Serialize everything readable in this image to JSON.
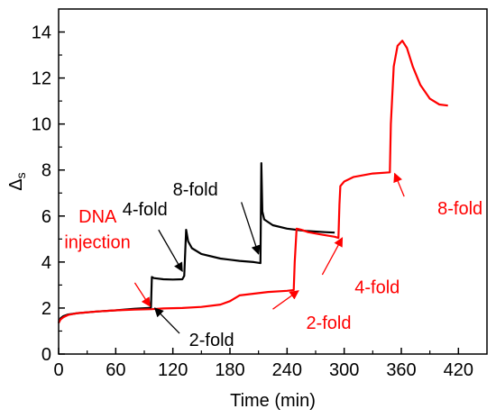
{
  "chart_data": {
    "type": "line",
    "xlabel": "Time (min)",
    "ylabel": "Δ",
    "ylabel_sub": "s",
    "xlim": [
      0,
      450
    ],
    "ylim": [
      0,
      15
    ],
    "xticks": [
      0,
      60,
      120,
      180,
      240,
      300,
      360,
      420
    ],
    "yticks": [
      0,
      2,
      4,
      6,
      8,
      10,
      12,
      14
    ],
    "grid": false,
    "legend": "none",
    "series": [
      {
        "color": "#000000",
        "points": [
          [
            0,
            1.35
          ],
          [
            2,
            1.55
          ],
          [
            5,
            1.65
          ],
          [
            10,
            1.72
          ],
          [
            20,
            1.78
          ],
          [
            40,
            1.85
          ],
          [
            60,
            1.9
          ],
          [
            80,
            1.97
          ],
          [
            95,
            2.0
          ],
          [
            97,
            2.02
          ],
          [
            98,
            3.35
          ],
          [
            100,
            3.3
          ],
          [
            110,
            3.25
          ],
          [
            120,
            3.24
          ],
          [
            130,
            3.25
          ],
          [
            132,
            3.4
          ],
          [
            134,
            5.4
          ],
          [
            136,
            4.9
          ],
          [
            140,
            4.6
          ],
          [
            150,
            4.35
          ],
          [
            170,
            4.15
          ],
          [
            190,
            4.05
          ],
          [
            205,
            4.0
          ],
          [
            212,
            3.95
          ],
          [
            213,
            8.3
          ],
          [
            214,
            6.2
          ],
          [
            216,
            5.85
          ],
          [
            225,
            5.6
          ],
          [
            240,
            5.45
          ],
          [
            260,
            5.35
          ],
          [
            280,
            5.3
          ],
          [
            290,
            5.28
          ]
        ]
      },
      {
        "color": "#ff0000",
        "points": [
          [
            0,
            1.35
          ],
          [
            2,
            1.5
          ],
          [
            5,
            1.6
          ],
          [
            10,
            1.7
          ],
          [
            20,
            1.78
          ],
          [
            40,
            1.85
          ],
          [
            60,
            1.9
          ],
          [
            80,
            1.93
          ],
          [
            98,
            1.95
          ],
          [
            110,
            1.98
          ],
          [
            130,
            2.0
          ],
          [
            150,
            2.05
          ],
          [
            170,
            2.15
          ],
          [
            180,
            2.3
          ],
          [
            190,
            2.55
          ],
          [
            200,
            2.6
          ],
          [
            220,
            2.7
          ],
          [
            240,
            2.75
          ],
          [
            247,
            2.78
          ],
          [
            248,
            4.0
          ],
          [
            250,
            5.45
          ],
          [
            255,
            5.4
          ],
          [
            262,
            5.3
          ],
          [
            275,
            5.2
          ],
          [
            290,
            5.1
          ],
          [
            294,
            5.05
          ],
          [
            295,
            6.5
          ],
          [
            296,
            7.3
          ],
          [
            300,
            7.5
          ],
          [
            310,
            7.7
          ],
          [
            330,
            7.85
          ],
          [
            348,
            7.9
          ],
          [
            349,
            10.0
          ],
          [
            352,
            12.5
          ],
          [
            356,
            13.4
          ],
          [
            361,
            13.62
          ],
          [
            366,
            13.3
          ],
          [
            372,
            12.5
          ],
          [
            380,
            11.7
          ],
          [
            390,
            11.1
          ],
          [
            400,
            10.85
          ],
          [
            409,
            10.8
          ]
        ]
      }
    ],
    "annotations": [
      {
        "text": "DNA",
        "color": "#ff0000",
        "at": [
          21,
          5.72
        ]
      },
      {
        "text": "injection",
        "color": "#ff0000",
        "at": [
          6,
          4.6
        ]
      },
      {
        "text": "4-fold",
        "color": "#000000",
        "at": [
          67,
          6.03
        ]
      },
      {
        "text": "8-fold",
        "color": "#000000",
        "at": [
          120,
          6.9
        ]
      },
      {
        "text": "2-fold",
        "color": "#000000",
        "at": [
          137,
          0.35
        ]
      },
      {
        "text": "2-fold",
        "color": "#ff0000",
        "at": [
          260,
          1.1
        ]
      },
      {
        "text": "4-fold",
        "color": "#ff0000",
        "at": [
          311,
          2.65
        ]
      },
      {
        "text": "8-fold",
        "color": "#ff0000",
        "at": [
          398,
          6.08
        ]
      }
    ],
    "arrows": [
      {
        "color": "#ff0000",
        "from": [
          80,
          3.1
        ],
        "to": [
          96,
          2.08
        ]
      },
      {
        "color": "#000000",
        "from": [
          127,
          0.9
        ],
        "to": [
          101,
          2.0
        ]
      },
      {
        "color": "#000000",
        "from": [
          105,
          5.4
        ],
        "to": [
          130,
          3.6
        ]
      },
      {
        "color": "#000000",
        "from": [
          192,
          6.6
        ],
        "to": [
          210,
          4.35
        ]
      },
      {
        "color": "#ff0000",
        "from": [
          225,
          1.95
        ],
        "to": [
          252,
          2.75
        ]
      },
      {
        "color": "#ff0000",
        "from": [
          277,
          3.45
        ],
        "to": [
          298,
          5.05
        ]
      },
      {
        "color": "#ff0000",
        "from": [
          363,
          6.85
        ],
        "to": [
          353,
          7.85
        ]
      }
    ]
  }
}
